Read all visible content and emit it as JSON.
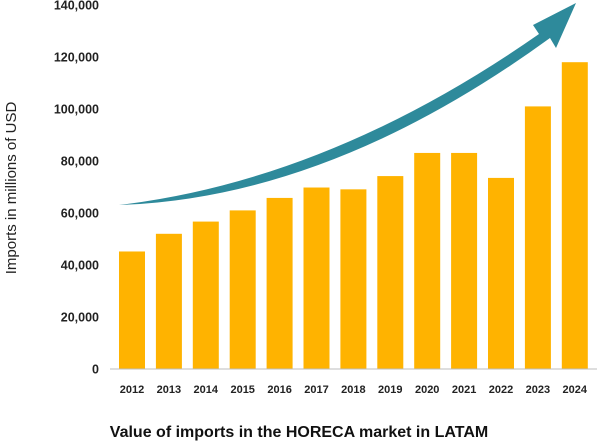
{
  "chart_data": {
    "type": "bar",
    "title": "Value of imports in the HORECA market in LATAM",
    "xlabel": "",
    "ylabel": "Imports in millions of USD",
    "categories": [
      "2012",
      "2013",
      "2014",
      "2015",
      "2016",
      "2017",
      "2018",
      "2019",
      "2020",
      "2021",
      "2022",
      "2023",
      "2024"
    ],
    "values": [
      45200,
      52000,
      56700,
      61000,
      65800,
      69800,
      69100,
      74200,
      83100,
      83100,
      73500,
      101000,
      118000
    ],
    "ylim": [
      0,
      140000
    ],
    "yticks": [
      "0",
      "20,000",
      "40,000",
      "60,000",
      "80,000",
      "100,000",
      "120,000",
      "140,000"
    ],
    "ytick_values": [
      0,
      20000,
      40000,
      60000,
      80000,
      100000,
      120000,
      140000
    ],
    "grid": false,
    "legend": "none",
    "bar_color": "#FFB300",
    "trend_arrow_color": "#2E8A9B"
  }
}
